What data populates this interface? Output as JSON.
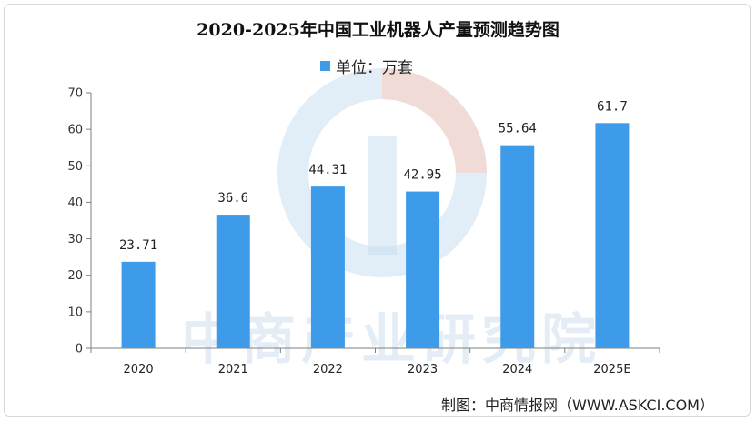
{
  "chart_data": {
    "type": "bar",
    "title": "2020-2025年中国工业机器人产量预测趋势图",
    "legend": {
      "label": "单位：万套",
      "position": "top-center"
    },
    "categories": [
      "2020",
      "2021",
      "2022",
      "2023",
      "2024",
      "2025E"
    ],
    "values": [
      23.71,
      36.6,
      44.31,
      42.95,
      55.64,
      61.7
    ],
    "data_labels": [
      "23.71",
      "36.6",
      "44.31",
      "42.95",
      "55.64",
      "61.7"
    ],
    "ylim": [
      0,
      70
    ],
    "yticks": [
      0,
      10,
      20,
      30,
      40,
      50,
      60,
      70
    ],
    "xlabel": "",
    "ylabel": "",
    "grid": false,
    "bar_color": "#3d9be9"
  },
  "watermark": "中商产业研究院",
  "source": "制图：中商情报网（WWW.ASKCI.COM）"
}
